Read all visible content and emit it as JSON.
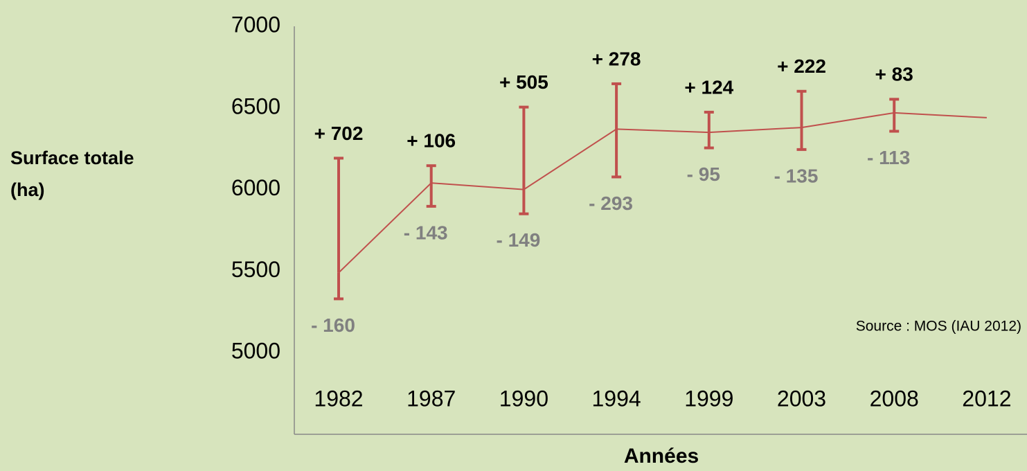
{
  "chart_data": {
    "type": "line",
    "ylabel": "Surface totale (ha)",
    "xlabel": "Années",
    "annotation": "Source : MOS (IAU 2012)",
    "categories": [
      "1982",
      "1987",
      "1990",
      "1994",
      "1999",
      "2003",
      "2008",
      "2012"
    ],
    "values": [
      5490,
      6040,
      6000,
      6370,
      6350,
      6380,
      6470,
      6440
    ],
    "errors_plus": [
      702,
      106,
      505,
      278,
      124,
      222,
      83,
      null
    ],
    "errors_plus_labels": [
      "+ 702",
      "+ 106",
      "+ 505",
      "+ 278",
      "+ 124",
      "+ 222",
      "+ 83",
      null
    ],
    "errors_minus": [
      160,
      143,
      149,
      293,
      95,
      135,
      113,
      null
    ],
    "errors_minus_labels": [
      "- 160",
      "- 143",
      "- 149",
      "- 293",
      "- 95",
      "- 135",
      "- 113",
      null
    ],
    "color": "#c0504d",
    "ylim": [
      4500,
      7000
    ],
    "yticks": [
      5000,
      5500,
      6000,
      6500,
      7000
    ],
    "grid": false
  }
}
